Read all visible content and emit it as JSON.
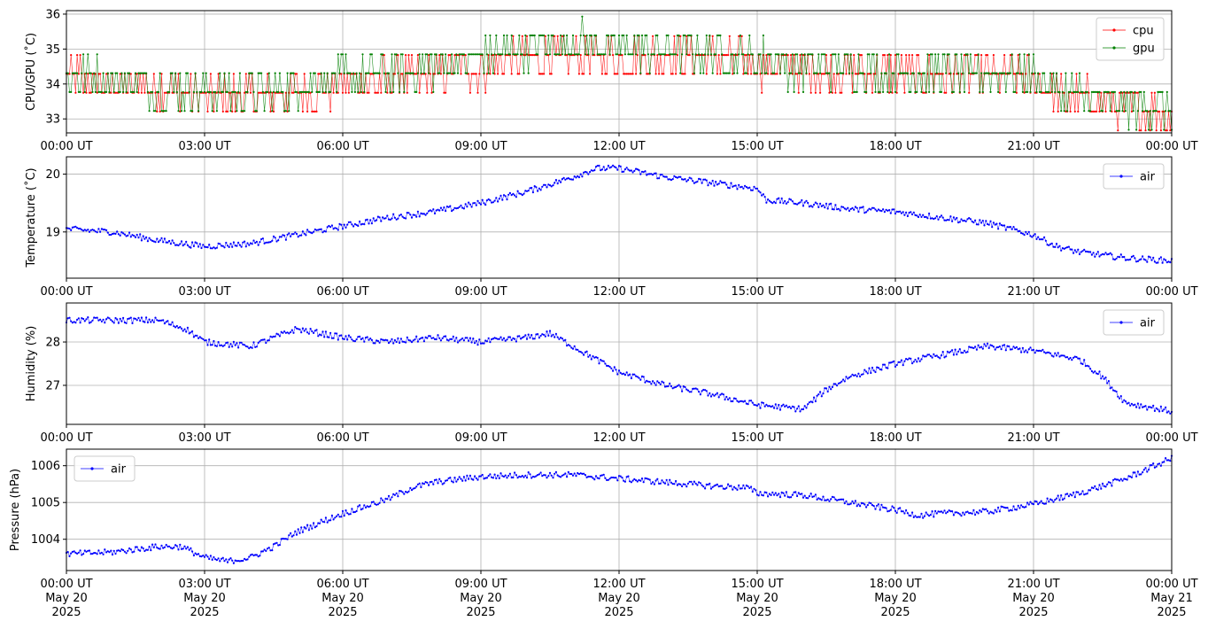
{
  "chart_data": [
    {
      "type": "line",
      "ylabel": "CPU/GPU (˚C)",
      "ylim": [
        32.6,
        36.1
      ],
      "yticks": [
        33,
        34,
        35,
        36
      ],
      "xlim": [
        "2025-05-20T00:00Z",
        "2025-05-21T00:00Z"
      ],
      "xtick_labels": [
        "00:00 UT",
        "03:00 UT",
        "06:00 UT",
        "09:00 UT",
        "12:00 UT",
        "15:00 UT",
        "18:00 UT",
        "21:00 UT",
        "00:00 UT"
      ],
      "grid": true,
      "legend_position": "top-right",
      "series": [
        {
          "name": "cpu",
          "color": "#ff0000",
          "x_hours": [
            0,
            1.5,
            2.7,
            3.0,
            4.5,
            6.0,
            8.0,
            9.0,
            10.0,
            11.0,
            12.0,
            13.0,
            14.0,
            15.0,
            16.0,
            17.0,
            18.0,
            19.0,
            20.0,
            21.0,
            21.5,
            22.5,
            23.2,
            24.0
          ],
          "y": [
            34.3,
            34.0,
            33.8,
            33.7,
            33.7,
            34.0,
            34.3,
            34.5,
            34.8,
            34.8,
            34.8,
            34.8,
            34.8,
            34.6,
            34.5,
            34.4,
            34.3,
            34.3,
            34.3,
            34.2,
            33.7,
            33.5,
            33.4,
            33.2
          ]
        },
        {
          "name": "gpu",
          "color": "#008000",
          "x_hours": [
            0,
            1.5,
            2.7,
            3.0,
            4.5,
            6.0,
            8.0,
            9.0,
            10.0,
            11.0,
            12.0,
            13.0,
            14.0,
            15.0,
            16.0,
            17.0,
            18.0,
            19.0,
            20.0,
            21.0,
            21.5,
            22.5,
            23.2,
            24.0
          ],
          "y": [
            34.3,
            34.0,
            33.8,
            33.8,
            33.8,
            34.2,
            34.5,
            34.8,
            35.1,
            35.2,
            35.1,
            35.0,
            34.9,
            34.7,
            34.5,
            34.5,
            34.4,
            34.3,
            34.3,
            34.3,
            33.8,
            33.5,
            33.4,
            33.3
          ]
        }
      ]
    },
    {
      "type": "line",
      "ylabel": "Temperature (˚C)",
      "ylim": [
        18.2,
        20.3
      ],
      "yticks": [
        19,
        20
      ],
      "xlim": [
        "2025-05-20T00:00Z",
        "2025-05-21T00:00Z"
      ],
      "xtick_labels": [
        "00:00 UT",
        "03:00 UT",
        "06:00 UT",
        "09:00 UT",
        "12:00 UT",
        "15:00 UT",
        "18:00 UT",
        "21:00 UT",
        "00:00 UT"
      ],
      "grid": true,
      "legend_position": "top-right",
      "series": [
        {
          "name": "air",
          "color": "#0000ff",
          "x_hours": [
            0,
            1.0,
            2.0,
            3.0,
            4.0,
            5.0,
            6.0,
            7.0,
            8.0,
            9.0,
            10.0,
            11.0,
            11.5,
            12.0,
            13.0,
            14.0,
            15.0,
            15.2,
            16.0,
            17.0,
            18.0,
            19.0,
            20.0,
            21.0,
            21.5,
            22.0,
            23.0,
            24.0
          ],
          "y": [
            19.05,
            19.0,
            18.85,
            18.75,
            18.8,
            18.95,
            19.1,
            19.25,
            19.35,
            19.5,
            19.7,
            19.95,
            20.1,
            20.1,
            19.95,
            19.85,
            19.75,
            19.55,
            19.5,
            19.4,
            19.35,
            19.25,
            19.15,
            18.95,
            18.75,
            18.65,
            18.55,
            18.5
          ]
        }
      ]
    },
    {
      "type": "line",
      "ylabel": "Humidity (%)",
      "ylim": [
        26.1,
        28.9
      ],
      "yticks": [
        27,
        28
      ],
      "xlim": [
        "2025-05-20T00:00Z",
        "2025-05-21T00:00Z"
      ],
      "xtick_labels": [
        "00:00 UT",
        "03:00 UT",
        "06:00 UT",
        "09:00 UT",
        "12:00 UT",
        "15:00 UT",
        "18:00 UT",
        "21:00 UT",
        "00:00 UT"
      ],
      "grid": true,
      "legend_position": "top-right",
      "series": [
        {
          "name": "air",
          "color": "#0000ff",
          "x_hours": [
            0,
            1.0,
            2.0,
            2.6,
            3.0,
            4.0,
            5.0,
            6.0,
            7.0,
            8.0,
            9.0,
            10.0,
            10.5,
            11.0,
            12.0,
            13.0,
            14.0,
            15.0,
            16.0,
            16.5,
            17.0,
            18.0,
            19.0,
            20.0,
            21.0,
            22.0,
            22.5,
            23.0,
            24.0
          ],
          "y": [
            28.5,
            28.5,
            28.5,
            28.3,
            28.0,
            27.9,
            28.3,
            28.1,
            28.0,
            28.1,
            28.0,
            28.1,
            28.2,
            27.9,
            27.3,
            27.0,
            26.8,
            26.55,
            26.45,
            26.9,
            27.2,
            27.5,
            27.7,
            27.9,
            27.8,
            27.6,
            27.2,
            26.6,
            26.4
          ]
        }
      ]
    },
    {
      "type": "line",
      "ylabel": "Pressure (hPa)",
      "ylim": [
        1003.15,
        1006.45
      ],
      "yticks": [
        1004,
        1005,
        1006
      ],
      "xlim": [
        "2025-05-20T00:00Z",
        "2025-05-21T00:00Z"
      ],
      "xtick_labels": [
        "00:00 UT\nMay 20\n2025",
        "03:00 UT\nMay 20\n2025",
        "06:00 UT\nMay 20\n2025",
        "09:00 UT\nMay 20\n2025",
        "12:00 UT\nMay 20\n2025",
        "15:00 UT\nMay 20\n2025",
        "18:00 UT\nMay 20\n2025",
        "21:00 UT\nMay 20\n2025",
        "00:00 UT\nMay 21\n2025"
      ],
      "grid": true,
      "legend_position": "top-left",
      "series": [
        {
          "name": "air",
          "color": "#0000ff",
          "x_hours": [
            0,
            1.0,
            2.0,
            2.5,
            3.0,
            3.5,
            4.0,
            4.5,
            5.0,
            6.0,
            7.0,
            7.5,
            8.0,
            9.0,
            10.0,
            11.0,
            12.0,
            13.0,
            14.0,
            14.8,
            15.0,
            16.0,
            17.0,
            18.0,
            18.5,
            19.0,
            20.0,
            21.0,
            22.0,
            23.0,
            24.0
          ],
          "y": [
            1003.6,
            1003.65,
            1003.8,
            1003.8,
            1003.5,
            1003.4,
            1003.5,
            1003.8,
            1004.2,
            1004.7,
            1005.1,
            1005.4,
            1005.55,
            1005.7,
            1005.75,
            1005.75,
            1005.65,
            1005.55,
            1005.45,
            1005.4,
            1005.25,
            1005.2,
            1005.0,
            1004.8,
            1004.65,
            1004.7,
            1004.75,
            1004.95,
            1005.25,
            1005.65,
            1006.2
          ]
        }
      ]
    }
  ]
}
